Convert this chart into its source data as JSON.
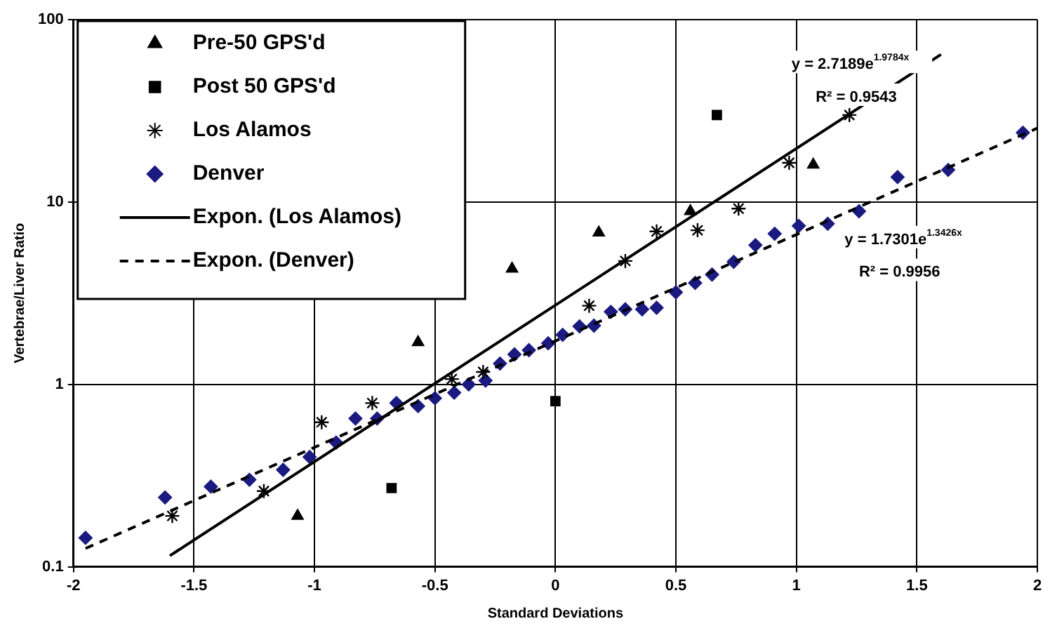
{
  "chart_data": {
    "type": "scatter",
    "xlabel": "Standard Deviations",
    "ylabel": "Vertebrae/Liver Ratio",
    "xlim": [
      -2,
      2
    ],
    "xticks": [
      -2,
      -1.5,
      -1,
      -0.5,
      0,
      0.5,
      1,
      1.5,
      2
    ],
    "ylim": [
      0.1,
      100
    ],
    "yticks": [
      0.1,
      1,
      10,
      100
    ],
    "log": "y",
    "grid": true,
    "legend": "top left",
    "series": [
      {
        "name": "Pre-50 GPS'd",
        "marker": "triangle",
        "color": "#000000",
        "x": [
          -1.07,
          -0.57,
          -0.18,
          0.18,
          0.56,
          1.07
        ],
        "values": [
          0.19,
          1.7,
          4.3,
          6.8,
          8.9,
          16
        ]
      },
      {
        "name": "Post 50 GPS'd",
        "marker": "square",
        "color": "#000000",
        "x": [
          -0.68,
          0,
          0.67
        ],
        "values": [
          0.27,
          0.81,
          30
        ]
      },
      {
        "name": "Los Alamos",
        "marker": "cross",
        "color": "#000000",
        "x": [
          -1.59,
          -1.21,
          -0.97,
          -0.76,
          -0.43,
          -0.3,
          0.14,
          0.29,
          0.42,
          0.59,
          0.76,
          0.97,
          1.22
        ],
        "values": [
          0.19,
          0.26,
          0.62,
          0.79,
          1.07,
          1.17,
          2.7,
          4.75,
          6.9,
          7.0,
          9.2,
          16.4,
          30
        ]
      },
      {
        "name": "Denver",
        "marker": "diamond",
        "color": "#1a1a80",
        "x": [
          -1.95,
          -1.62,
          -1.43,
          -1.27,
          -1.13,
          -1.02,
          -0.91,
          -0.83,
          -0.74,
          -0.66,
          -0.57,
          -0.5,
          -0.42,
          -0.36,
          -0.29,
          -0.23,
          -0.17,
          -0.11,
          -0.03,
          0.03,
          0.1,
          0.16,
          0.23,
          0.29,
          0.36,
          0.42,
          0.5,
          0.58,
          0.65,
          0.74,
          0.83,
          0.91,
          1.01,
          1.13,
          1.26,
          1.42,
          1.63,
          1.94
        ],
        "values": [
          0.144,
          0.24,
          0.275,
          0.3,
          0.34,
          0.4,
          0.48,
          0.65,
          0.65,
          0.79,
          0.76,
          0.84,
          0.9,
          1.0,
          1.05,
          1.3,
          1.46,
          1.54,
          1.68,
          1.87,
          2.08,
          2.1,
          2.5,
          2.58,
          2.58,
          2.63,
          3.2,
          3.6,
          4.0,
          4.7,
          5.8,
          6.7,
          7.4,
          7.6,
          8.9,
          13.7,
          15,
          24
        ]
      },
      {
        "name": "Expon. (Los Alamos)",
        "type": "line",
        "marker": "none",
        "line_style": "solid",
        "color": "#000000",
        "x": [
          -1.6,
          0,
          1.6
        ],
        "values": [
          0.115,
          2.72,
          64.4
        ]
      },
      {
        "name": "Expon. (Denver)",
        "type": "line",
        "marker": "none",
        "line_style": "dashed",
        "color": "#000000",
        "x": [
          -1.95,
          0,
          2
        ],
        "values": [
          0.126,
          1.73,
          25.4
        ]
      }
    ],
    "annotations": [
      "y = 2.7189e$^{1.9784x}$",
      "R² = 0.9543",
      "y = 1.7301e$^{1.3426x}$",
      "R² = 0.9956"
    ]
  }
}
